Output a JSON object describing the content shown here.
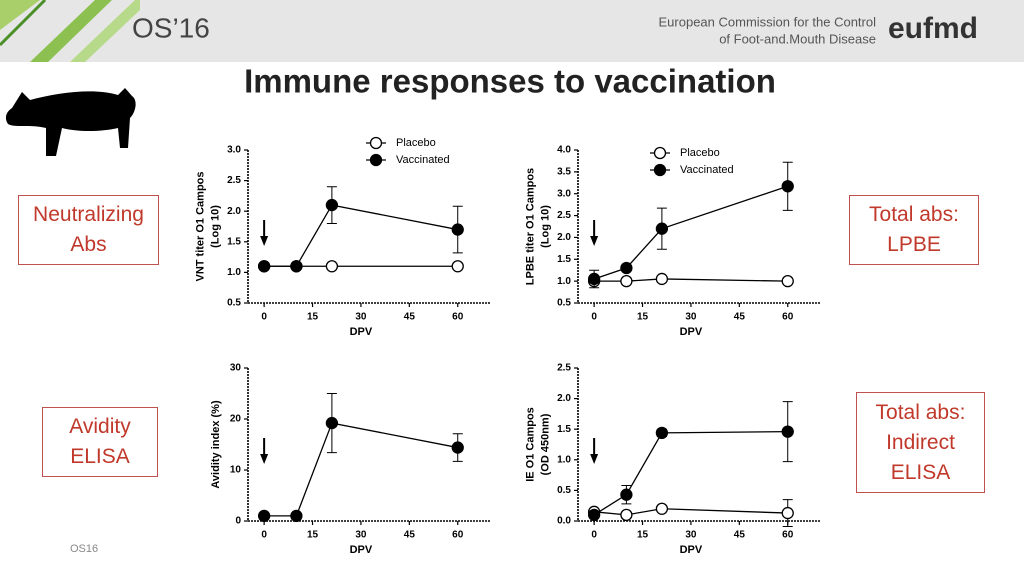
{
  "header": {
    "logo": "OS’16",
    "org_lines": [
      "European Commission for the Control",
      "of Foot-and.Mouth Disease"
    ],
    "brand": "eufmd"
  },
  "title": "Immune responses to vaccination",
  "boxes": [
    [
      "Neutralizing",
      "Abs"
    ],
    [
      "Total abs:",
      "LPBE"
    ],
    [
      "Avidity",
      "ELISA"
    ],
    [
      "Total abs:",
      "Indirect",
      "ELISA"
    ]
  ],
  "footer": "OS16",
  "chart_data": [
    {
      "type": "line",
      "ylabel": [
        "VNT titer O1 Campos",
        "(Log 10)"
      ],
      "xlabel": "DPV",
      "x": [
        0,
        10,
        21,
        60
      ],
      "xlim": [
        -5,
        70
      ],
      "xticks": [
        0,
        15,
        30,
        45,
        60
      ],
      "ylim": [
        0.5,
        3.0
      ],
      "yticks": [
        0.5,
        {
          "value": 1,
          "label": "1.0"
        },
        1.5,
        {
          "value": 2,
          "label": "2.0"
        },
        2.5,
        {
          "value": 3,
          "label": "3.0"
        }
      ],
      "legend": "top",
      "series": [
        {
          "name": "Placebo",
          "color": "#000000",
          "marker": "open",
          "values": [
            1.1,
            1.1,
            1.1,
            1.1
          ]
        },
        {
          "name": "Vaccinated",
          "color": "#000000",
          "marker": "filled",
          "values": [
            1.1,
            1.1,
            2.1,
            1.7
          ],
          "errors": [
            null,
            null,
            0.3,
            0.38
          ]
        }
      ]
    },
    {
      "type": "line",
      "ylabel": [
        "LPBE titer O1 Campos",
        "(Log 10)"
      ],
      "xlabel": "DPV",
      "x": [
        0,
        10,
        21,
        60
      ],
      "xlim": [
        -5,
        70
      ],
      "xticks": [
        0,
        15,
        30,
        45,
        60
      ],
      "ylim": [
        0.5,
        4.0
      ],
      "yticks": [
        0.5,
        {
          "value": 1,
          "label": "1.0"
        },
        1.5,
        {
          "value": 2,
          "label": "2.0"
        },
        2.5,
        {
          "value": 3,
          "label": "3.0"
        },
        3.5,
        {
          "value": 4,
          "label": "4.0"
        }
      ],
      "legend": "top-right",
      "series": [
        {
          "name": "Placebo",
          "color": "#000000",
          "marker": "open",
          "values": [
            1.0,
            1.0,
            1.05,
            1.0
          ]
        },
        {
          "name": "Vaccinated",
          "color": "#000000",
          "marker": "filled",
          "values": [
            1.05,
            1.3,
            2.2,
            3.17
          ],
          "errors": [
            0.2,
            null,
            0.47,
            0.55
          ]
        }
      ]
    },
    {
      "type": "line",
      "ylabel": [
        "Avidity index (%)"
      ],
      "xlabel": "DPV",
      "x": [
        0,
        10,
        21,
        60
      ],
      "xlim": [
        -5,
        70
      ],
      "xticks": [
        0,
        15,
        30,
        45,
        60
      ],
      "ylim": [
        0,
        30
      ],
      "yticks": [
        0,
        10,
        20,
        30
      ],
      "series": [
        {
          "color": "#000000",
          "marker": "filled",
          "values": [
            1,
            1,
            19.2,
            14.4
          ],
          "errors": [
            null,
            null,
            5.8,
            2.7
          ]
        }
      ]
    },
    {
      "type": "line",
      "ylabel": [
        "IE O1 Campos",
        "(OD 450nm)"
      ],
      "xlabel": "DPV",
      "x": [
        0,
        10,
        21,
        60
      ],
      "xlim": [
        -5,
        70
      ],
      "xticks": [
        0,
        15,
        30,
        45,
        60
      ],
      "ylim": [
        0,
        2.5
      ],
      "yticks": [
        {
          "value": 0,
          "label": "0.0"
        },
        0.5,
        {
          "value": 1,
          "label": "1.0"
        },
        1.5,
        {
          "value": 2,
          "label": "2.0"
        },
        2.5
      ],
      "series": [
        {
          "color": "#000000",
          "marker": "open",
          "values": [
            0.15,
            0.1,
            0.2,
            0.13
          ],
          "errors": [
            null,
            null,
            null,
            0.22
          ]
        },
        {
          "color": "#000000",
          "marker": "filled",
          "values": [
            0.1,
            0.43,
            1.44,
            1.46
          ],
          "errors": [
            null,
            0.15,
            0.06,
            0.49
          ]
        }
      ]
    }
  ]
}
